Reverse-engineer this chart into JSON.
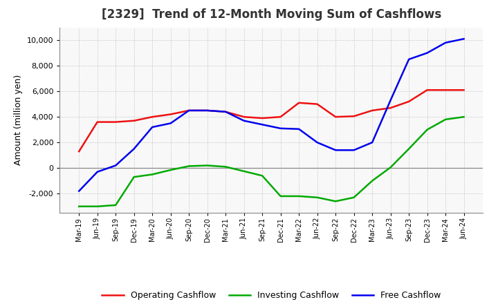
{
  "title": "[2329]  Trend of 12-Month Moving Sum of Cashflows",
  "ylabel": "Amount (million yen)",
  "x_labels": [
    "Mar-19",
    "Jun-19",
    "Sep-19",
    "Dec-19",
    "Mar-20",
    "Jun-20",
    "Sep-20",
    "Dec-20",
    "Mar-21",
    "Jun-21",
    "Sep-21",
    "Dec-21",
    "Mar-22",
    "Jun-22",
    "Sep-22",
    "Dec-22",
    "Mar-23",
    "Jun-23",
    "Sep-23",
    "Dec-23",
    "Mar-24",
    "Jun-24"
  ],
  "operating_cashflow": [
    1300,
    3600,
    3600,
    3700,
    4000,
    4200,
    4500,
    4500,
    4400,
    4000,
    3900,
    4000,
    5100,
    5000,
    4000,
    4050,
    4500,
    4700,
    5200,
    6100,
    6100,
    6100
  ],
  "investing_cashflow": [
    -3000,
    -3000,
    -2900,
    -700,
    -500,
    -150,
    150,
    200,
    100,
    -250,
    -600,
    -2200,
    -2200,
    -2300,
    -2600,
    -2300,
    -1000,
    50,
    1500,
    3000,
    3800,
    4000
  ],
  "free_cashflow": [
    -1800,
    -300,
    200,
    1500,
    3200,
    3500,
    4500,
    4500,
    4400,
    3700,
    3400,
    3100,
    3050,
    2000,
    1400,
    1400,
    2000,
    5300,
    8500,
    9000,
    9800,
    10100
  ],
  "operating_color": "#ee1111",
  "investing_color": "#00aa00",
  "free_color": "#0000ee",
  "background_color": "#ffffff",
  "plot_background": "#f8f8f8",
  "ylim": [
    -3500,
    11000
  ],
  "yticks": [
    -2000,
    0,
    2000,
    4000,
    6000,
    8000,
    10000
  ],
  "grid_color": "#bbbbbb",
  "linewidth": 1.8,
  "title_fontsize": 12,
  "title_color": "#333333",
  "legend_labels": [
    "Operating Cashflow",
    "Investing Cashflow",
    "Free Cashflow"
  ]
}
